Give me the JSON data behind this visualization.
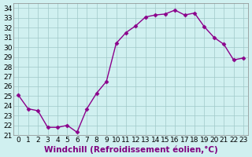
{
  "x": [
    0,
    1,
    2,
    3,
    4,
    5,
    6,
    7,
    8,
    9,
    10,
    11,
    12,
    13,
    14,
    15,
    16,
    17,
    18,
    19,
    20,
    21,
    22,
    23
  ],
  "y": [
    25.1,
    23.7,
    23.5,
    21.8,
    21.8,
    22.0,
    21.3,
    23.7,
    25.3,
    26.5,
    30.4,
    31.5,
    32.2,
    33.1,
    33.3,
    33.4,
    33.8,
    33.3,
    33.5,
    32.1,
    31.0,
    30.3,
    28.7,
    28.9
  ],
  "xlabel": "Windchill (Refroidissement éolien,°C)",
  "ylim": [
    21,
    34.5
  ],
  "xlim": [
    -0.5,
    23.5
  ],
  "line_color": "#8b008b",
  "marker_color": "#8b008b",
  "bg_color": "#d0f0f0",
  "grid_color": "#a0c8c8",
  "yticks": [
    21,
    22,
    23,
    24,
    25,
    26,
    27,
    28,
    29,
    30,
    31,
    32,
    33,
    34
  ],
  "xticks": [
    0,
    1,
    2,
    3,
    4,
    5,
    6,
    7,
    8,
    9,
    10,
    11,
    12,
    13,
    14,
    15,
    16,
    17,
    18,
    19,
    20,
    21,
    22,
    23
  ],
  "tick_label_fontsize": 6.5,
  "xlabel_fontsize": 7.5
}
